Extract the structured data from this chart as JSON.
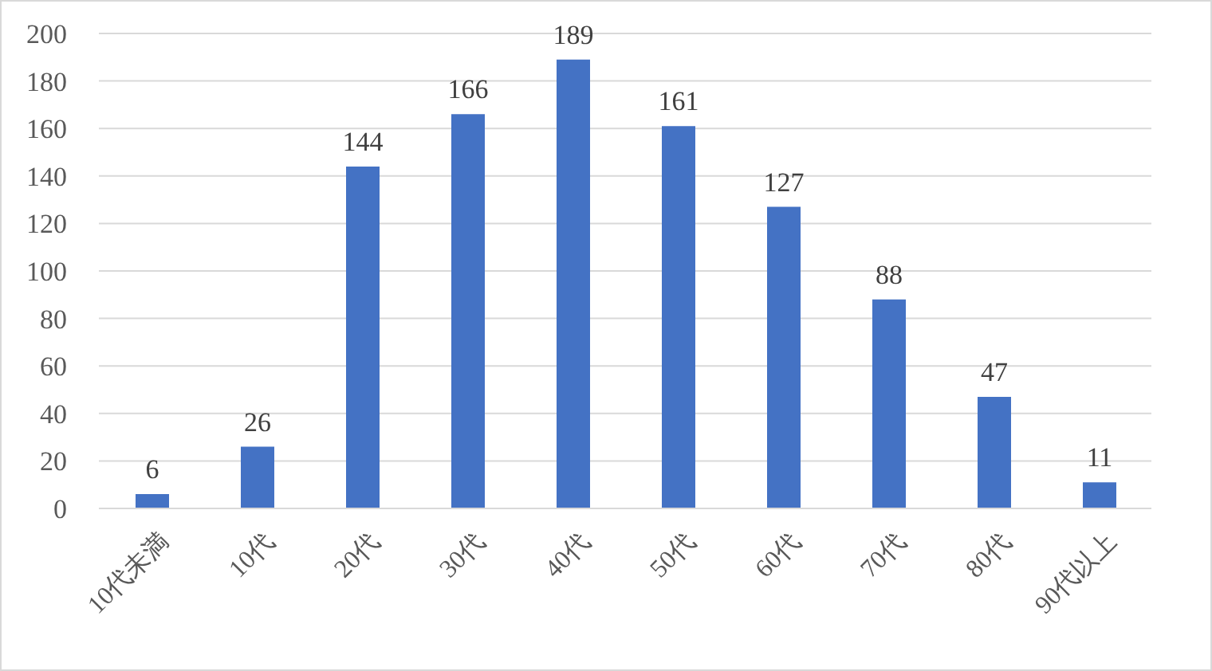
{
  "chart_data": {
    "type": "bar",
    "categories": [
      "10代未満",
      "10代",
      "20代",
      "30代",
      "40代",
      "50代",
      "60代",
      "70代",
      "80代",
      "90代以上"
    ],
    "values": [
      6,
      26,
      144,
      166,
      189,
      161,
      127,
      88,
      47,
      11
    ],
    "color": "#4472c4",
    "ylim": [
      0,
      200
    ],
    "yticks": [
      0,
      20,
      40,
      60,
      80,
      100,
      120,
      140,
      160,
      180,
      200
    ],
    "grid": "y",
    "data_labels": true
  }
}
